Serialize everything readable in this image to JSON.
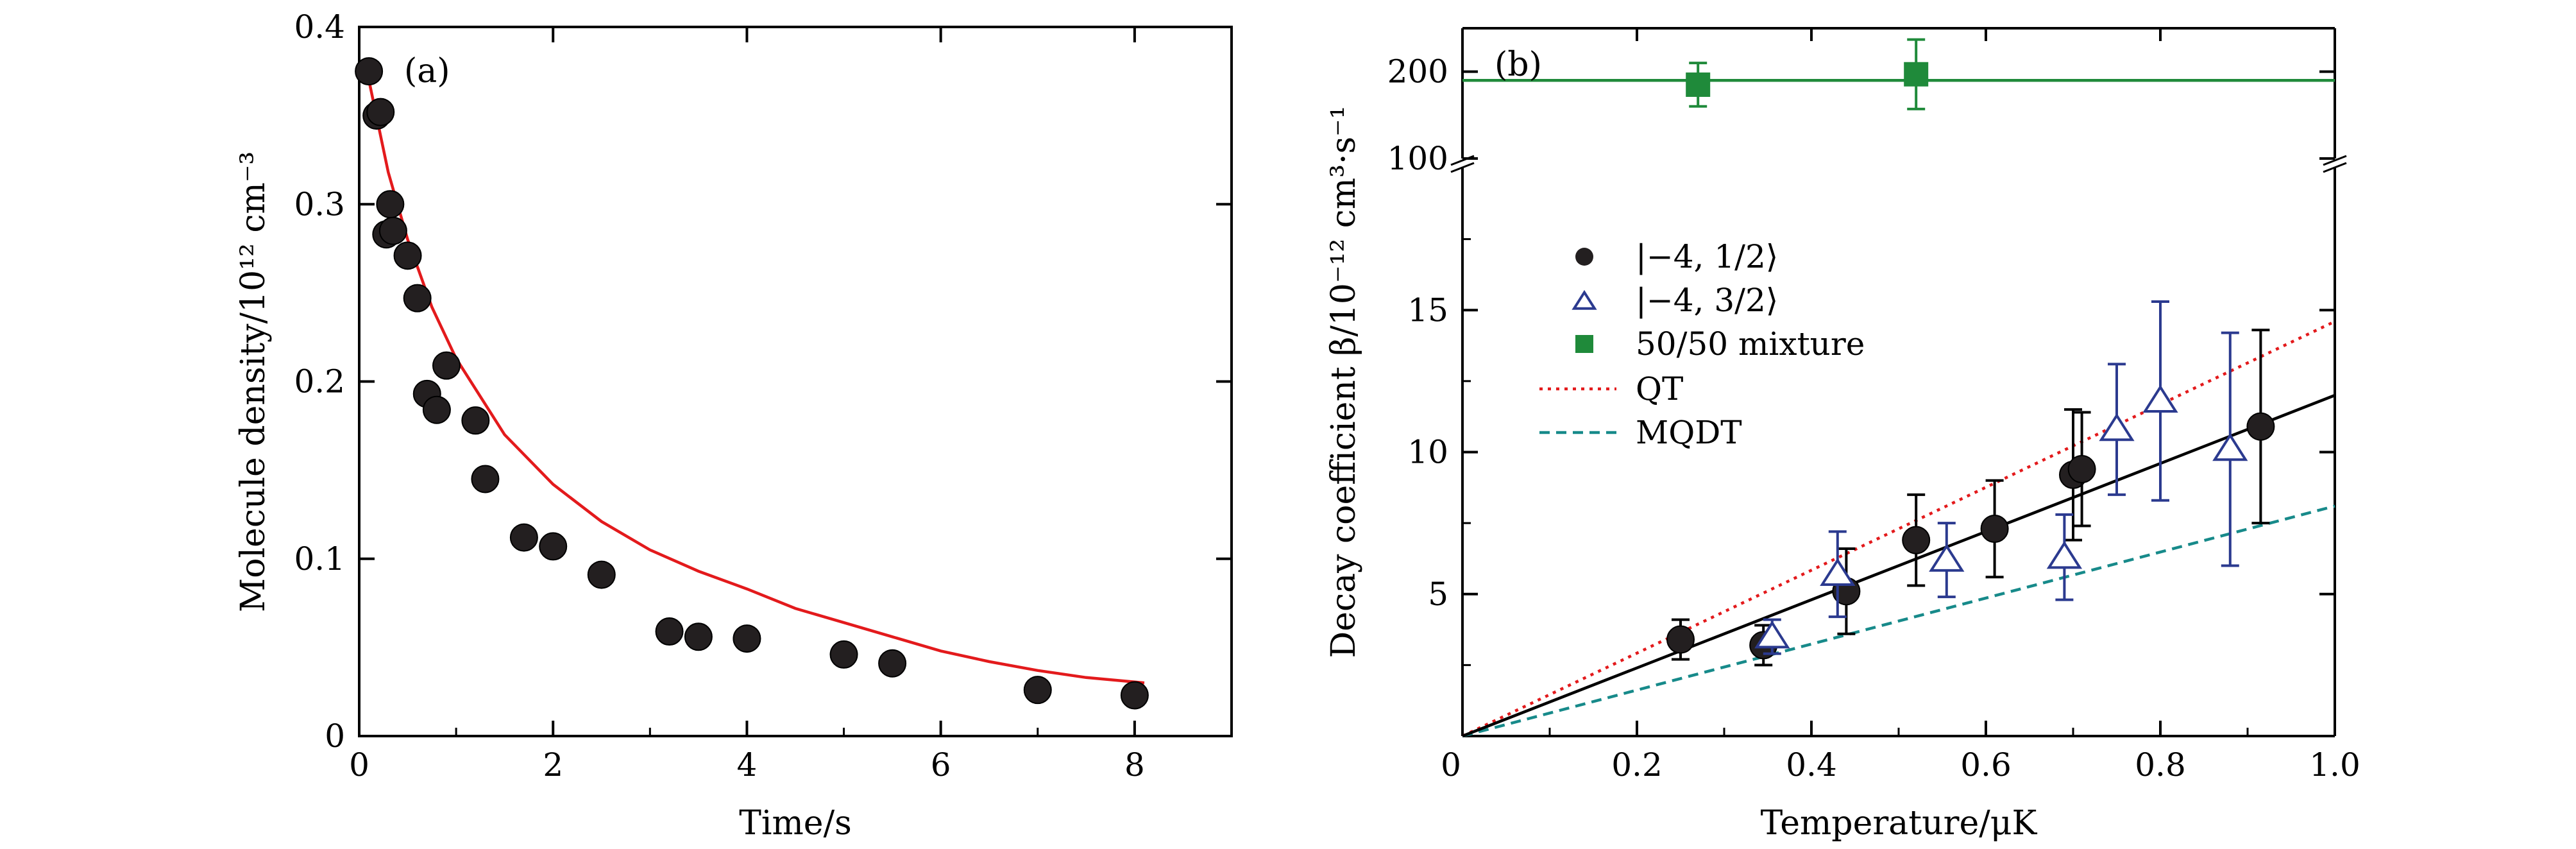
{
  "chart_data": [
    {
      "panel_label": "(a)",
      "type": "scatter",
      "xlabel": "Time/s",
      "ylabel": "Molecule density/10¹² cm⁻³",
      "xlim": [
        0,
        9
      ],
      "ylim": [
        0,
        0.4
      ],
      "x_ticks": [
        "0",
        "2",
        "4",
        "6",
        "8"
      ],
      "y_ticks": [
        "0",
        "0.1",
        "0.2",
        "0.3",
        "0.4"
      ],
      "series": [
        {
          "marker": "filled-circle",
          "color": "#231f20",
          "points": [
            [
              0.1,
              0.375
            ],
            [
              0.18,
              0.35
            ],
            [
              0.22,
              0.352
            ],
            [
              0.28,
              0.283
            ],
            [
              0.32,
              0.3
            ],
            [
              0.35,
              0.285
            ],
            [
              0.5,
              0.271
            ],
            [
              0.6,
              0.247
            ],
            [
              0.7,
              0.193
            ],
            [
              0.8,
              0.184
            ],
            [
              0.9,
              0.209
            ],
            [
              1.2,
              0.178
            ],
            [
              1.3,
              0.145
            ],
            [
              1.7,
              0.112
            ],
            [
              2.0,
              0.107
            ],
            [
              2.5,
              0.091
            ],
            [
              3.2,
              0.059
            ],
            [
              3.5,
              0.056
            ],
            [
              4.0,
              0.055
            ],
            [
              5.0,
              0.046
            ],
            [
              5.5,
              0.041
            ],
            [
              7.0,
              0.026
            ],
            [
              8.0,
              0.023
            ]
          ]
        },
        {
          "line": "fit",
          "color": "#e31a1c",
          "points": [
            [
              0.1,
              0.37
            ],
            [
              0.3,
              0.318
            ],
            [
              0.5,
              0.28
            ],
            [
              0.75,
              0.242
            ],
            [
              1.0,
              0.213
            ],
            [
              1.5,
              0.17
            ],
            [
              2.0,
              0.142
            ],
            [
              2.5,
              0.121
            ],
            [
              3.0,
              0.105
            ],
            [
              3.5,
              0.093
            ],
            [
              4.0,
              0.083
            ],
            [
              4.5,
              0.072
            ],
            [
              5.0,
              0.064
            ],
            [
              5.5,
              0.056
            ],
            [
              6.0,
              0.048
            ],
            [
              6.5,
              0.042
            ],
            [
              7.0,
              0.037
            ],
            [
              7.5,
              0.033
            ],
            [
              8.1,
              0.03
            ]
          ]
        }
      ]
    },
    {
      "panel_label": "(b)",
      "type": "scatter",
      "xlabel": "Temperature/μK",
      "ylabel": "Decay coefficient β/10⁻¹² cm³·s⁻¹",
      "xlim": [
        0,
        1.0
      ],
      "ylim_lower": [
        0,
        20
      ],
      "ylim_upper": [
        100,
        250
      ],
      "broken_y_axis": true,
      "x_ticks": [
        "0",
        "0.2",
        "0.4",
        "0.6",
        "0.8",
        "1.0"
      ],
      "y_ticks_lower": [
        "5",
        "10",
        "15"
      ],
      "y_ticks_upper": [
        "100",
        "200"
      ],
      "legend_position": "upper-left",
      "legend": [
        {
          "label": "|−4, 1/2⟩",
          "marker": "filled-circle",
          "color": "#231f20"
        },
        {
          "label": "|−4, 3/2⟩",
          "marker": "open-triangle",
          "color": "#2b3a8f"
        },
        {
          "label": "50/50 mixture",
          "marker": "filled-square",
          "color": "#1f8a3a"
        },
        {
          "label": "QT",
          "line": "dotted",
          "color": "#e31a1c"
        },
        {
          "label": "MQDT",
          "line": "dashed",
          "color": "#178a8a"
        }
      ],
      "series": [
        {
          "legend_ref": 0,
          "marker": "filled-circle",
          "color": "#231f20",
          "points": [
            {
              "x": 0.25,
              "y": 3.4,
              "err": 0.7
            },
            {
              "x": 0.345,
              "y": 3.2,
              "err": 0.7
            },
            {
              "x": 0.44,
              "y": 5.1,
              "err": 1.5
            },
            {
              "x": 0.52,
              "y": 6.9,
              "err": 1.6
            },
            {
              "x": 0.61,
              "y": 7.3,
              "err": 1.7
            },
            {
              "x": 0.7,
              "y": 9.2,
              "err": 2.3
            },
            {
              "x": 0.71,
              "y": 9.4,
              "err": 2.0
            },
            {
              "x": 0.915,
              "y": 10.9,
              "err": 3.4
            }
          ]
        },
        {
          "legend_ref": 1,
          "marker": "open-triangle",
          "color": "#2b3a8f",
          "points": [
            {
              "x": 0.355,
              "y": 3.5,
              "err": 0.6
            },
            {
              "x": 0.43,
              "y": 5.7,
              "err": 1.5
            },
            {
              "x": 0.555,
              "y": 6.2,
              "err": 1.3
            },
            {
              "x": 0.69,
              "y": 6.3,
              "err": 1.5
            },
            {
              "x": 0.75,
              "y": 10.8,
              "err": 2.3
            },
            {
              "x": 0.8,
              "y": 11.8,
              "err": 3.5
            },
            {
              "x": 0.88,
              "y": 10.1,
              "err": 4.1
            }
          ]
        },
        {
          "legend_ref": 2,
          "marker": "filled-square",
          "color": "#1f8a3a",
          "axis": "upper",
          "points": [
            {
              "x": 0.27,
              "y": 185,
              "err": 25
            },
            {
              "x": 0.52,
              "y": 197,
              "err": 40
            }
          ]
        },
        {
          "legend_ref": 3,
          "line": "dotted",
          "color": "#e31a1c",
          "points": [
            [
              0,
              0
            ],
            [
              1.0,
              14.6
            ]
          ]
        },
        {
          "legend_ref": 4,
          "line": "dashed",
          "color": "#178a8a",
          "points": [
            [
              0,
              0
            ],
            [
              1.0,
              8.1
            ]
          ]
        },
        {
          "line": "solid",
          "color": "#000000",
          "points": [
            [
              0,
              0
            ],
            [
              1.0,
              12.0
            ]
          ]
        },
        {
          "line": "solid",
          "color": "#1f8a3a",
          "axis": "upper",
          "points": [
            [
              0,
              190
            ],
            [
              1.0,
              190
            ]
          ]
        }
      ]
    }
  ]
}
